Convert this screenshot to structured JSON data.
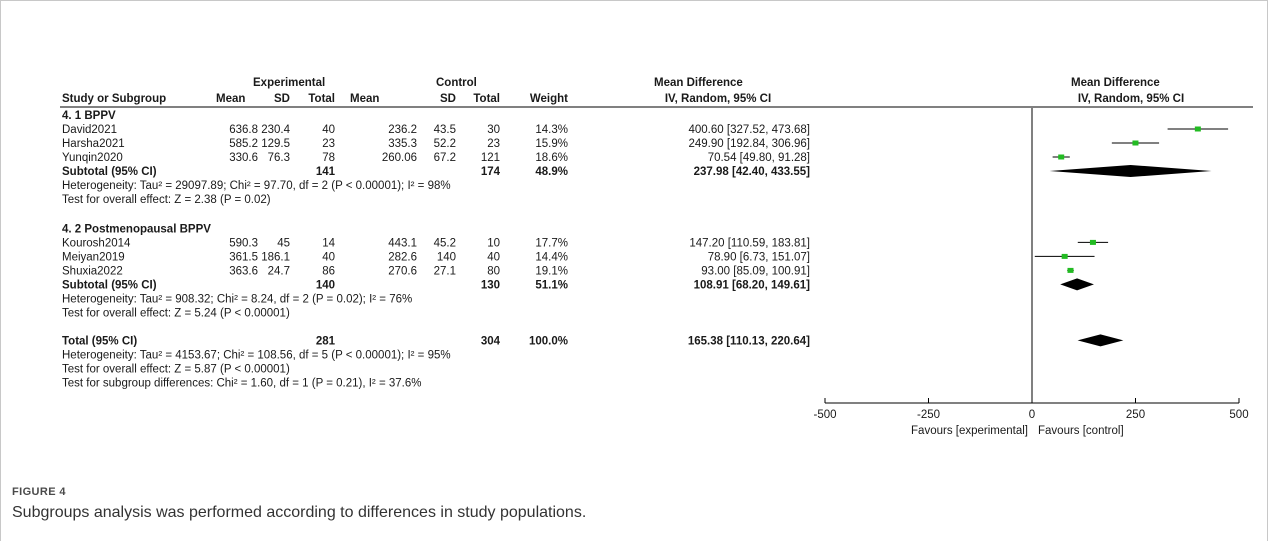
{
  "headers": {
    "exp_group": "Experimental",
    "ctl_group": "Control",
    "md_group": "Mean Difference",
    "md_method": "IV, Random, 95% CI",
    "plot_title": "Mean Difference",
    "plot_method": "IV, Random, 95% CI",
    "study": "Study or Subgroup",
    "mean": "Mean",
    "sd": "SD",
    "total": "Total",
    "weight": "Weight"
  },
  "chart_data": {
    "type": "forest",
    "xlim": [
      -500,
      500
    ],
    "x_ticks": [
      "-500",
      "-250",
      "0",
      "250",
      "500"
    ],
    "favours_left": "Favours [experimental]",
    "favours_right": "Favours [control]",
    "subgroups": [
      {
        "title": "4. 1 BPPV",
        "studies": [
          {
            "name": "David2021",
            "exp_mean": "636.8",
            "exp_sd": "230.4",
            "exp_total": "40",
            "ctl_mean": "236.2",
            "ctl_sd": "43.5",
            "ctl_total": "30",
            "weight": "14.3%",
            "ci_text": "400.60 [327.52, 473.68]",
            "md": 400.6,
            "lo": 327.52,
            "hi": 473.68
          },
          {
            "name": "Harsha2021",
            "exp_mean": "585.2",
            "exp_sd": "129.5",
            "exp_total": "23",
            "ctl_mean": "335.3",
            "ctl_sd": "52.2",
            "ctl_total": "23",
            "weight": "15.9%",
            "ci_text": "249.90 [192.84, 306.96]",
            "md": 249.9,
            "lo": 192.84,
            "hi": 306.96
          },
          {
            "name": "Yunqin2020",
            "exp_mean": "330.6",
            "exp_sd": "76.3",
            "exp_total": "78",
            "ctl_mean": "260.06",
            "ctl_sd": "67.2",
            "ctl_total": "121",
            "weight": "18.6%",
            "ci_text": "70.54 [49.80, 91.28]",
            "md": 70.54,
            "lo": 49.8,
            "hi": 91.28
          }
        ],
        "subtotal": {
          "label": "Subtotal (95% CI)",
          "exp_total": "141",
          "ctl_total": "174",
          "weight": "48.9%",
          "ci_text": "237.98 [42.40, 433.55]",
          "md": 237.98,
          "lo": 42.4,
          "hi": 433.55
        },
        "heterogeneity": "Heterogeneity: Tau² = 29097.89; Chi² = 97.70, df = 2 (P < 0.00001); I² = 98%",
        "overall": "Test for overall effect: Z = 2.38 (P = 0.02)"
      },
      {
        "title": "4. 2 Postmenopausal BPPV",
        "studies": [
          {
            "name": "Kourosh2014",
            "exp_mean": "590.3",
            "exp_sd": "45",
            "exp_total": "14",
            "ctl_mean": "443.1",
            "ctl_sd": "45.2",
            "ctl_total": "10",
            "weight": "17.7%",
            "ci_text": "147.20 [110.59, 183.81]",
            "md": 147.2,
            "lo": 110.59,
            "hi": 183.81
          },
          {
            "name": "Meiyan2019",
            "exp_mean": "361.5",
            "exp_sd": "186.1",
            "exp_total": "40",
            "ctl_mean": "282.6",
            "ctl_sd": "140",
            "ctl_total": "40",
            "weight": "14.4%",
            "ci_text": "78.90 [6.73, 151.07]",
            "md": 78.9,
            "lo": 6.73,
            "hi": 151.07
          },
          {
            "name": "Shuxia2022",
            "exp_mean": "363.6",
            "exp_sd": "24.7",
            "exp_total": "86",
            "ctl_mean": "270.6",
            "ctl_sd": "27.1",
            "ctl_total": "80",
            "weight": "19.1%",
            "ci_text": "93.00 [85.09, 100.91]",
            "md": 93.0,
            "lo": 85.09,
            "hi": 100.91
          }
        ],
        "subtotal": {
          "label": "Subtotal (95% CI)",
          "exp_total": "140",
          "ctl_total": "130",
          "weight": "51.1%",
          "ci_text": "108.91 [68.20, 149.61]",
          "md": 108.91,
          "lo": 68.2,
          "hi": 149.61
        },
        "heterogeneity": "Heterogeneity: Tau² = 908.32; Chi² = 8.24, df = 2 (P = 0.02); I² = 76%",
        "overall": "Test for overall effect: Z = 5.24 (P < 0.00001)"
      }
    ],
    "total": {
      "label": "Total (95% CI)",
      "exp_total": "281",
      "ctl_total": "304",
      "weight": "100.0%",
      "ci_text": "165.38 [110.13, 220.64]",
      "md": 165.38,
      "lo": 110.13,
      "hi": 220.64
    },
    "total_heterogeneity": "Heterogeneity: Tau² = 4153.67; Chi² = 108.56, df = 5 (P < 0.00001); I² = 95%",
    "total_overall": "Test for overall effect: Z = 5.87 (P < 0.00001)",
    "subgroup_diff": "Test for subgroup differences: Chi² = 1.60, df = 1 (P = 0.21), I² = 37.6%"
  },
  "caption": {
    "label": "FIGURE 4",
    "text": "Subgroups analysis was performed according to differences in study populations."
  },
  "colors": {
    "point": "#22bb22",
    "diamond": "#000000",
    "text": "#1a1a1a"
  }
}
